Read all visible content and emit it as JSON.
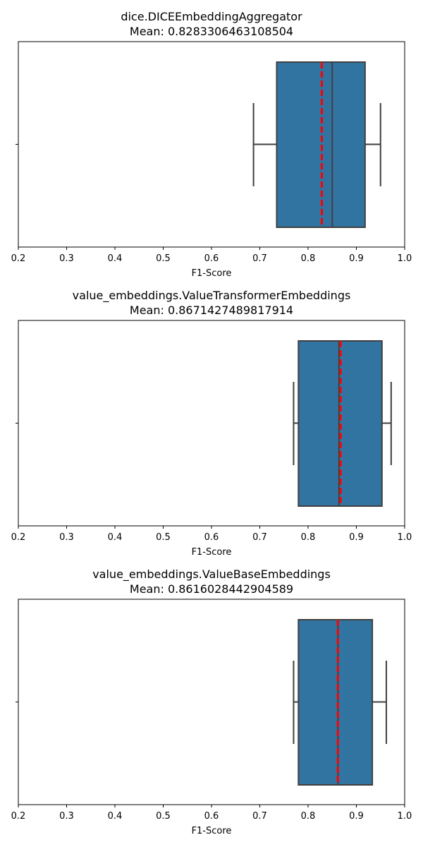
{
  "chart_data": [
    {
      "type": "box",
      "title": "dice.DICEEmbeddingAggregator",
      "subtitle": "Mean: 0.8283306463108504",
      "xlabel": "F1-Score",
      "xlim": [
        0.2,
        1.0
      ],
      "xticks": [
        "0.2",
        "0.3",
        "0.4",
        "0.5",
        "0.6",
        "0.7",
        "0.8",
        "0.9",
        "1.0"
      ],
      "box": {
        "whisker_low": 0.687,
        "q1": 0.735,
        "median": 0.85,
        "q3": 0.918,
        "whisker_high": 0.95
      },
      "mean": 0.8283306463108504,
      "colors": {
        "box": "#3274a1",
        "mean_line": "#ff0000",
        "edge": "#3f3f3f"
      }
    },
    {
      "type": "box",
      "title": "value_embeddings.ValueTransformerEmbeddings",
      "subtitle": "Mean: 0.8671427489817914",
      "xlabel": "F1-Score",
      "xlim": [
        0.2,
        1.0
      ],
      "xticks": [
        "0.2",
        "0.3",
        "0.4",
        "0.5",
        "0.6",
        "0.7",
        "0.8",
        "0.9",
        "1.0"
      ],
      "box": {
        "whisker_low": 0.77,
        "q1": 0.78,
        "median": 0.864,
        "q3": 0.953,
        "whisker_high": 0.972
      },
      "mean": 0.8671427489817914,
      "colors": {
        "box": "#3274a1",
        "mean_line": "#ff0000",
        "edge": "#3f3f3f"
      }
    },
    {
      "type": "box",
      "title": "value_embeddings.ValueBaseEmbeddings",
      "subtitle": "Mean: 0.8616028442904589",
      "xlabel": "F1-Score",
      "xlim": [
        0.2,
        1.0
      ],
      "xticks": [
        "0.2",
        "0.3",
        "0.4",
        "0.5",
        "0.6",
        "0.7",
        "0.8",
        "0.9",
        "1.0"
      ],
      "box": {
        "whisker_low": 0.77,
        "q1": 0.78,
        "median": 0.862,
        "q3": 0.933,
        "whisker_high": 0.962
      },
      "mean": 0.8616028442904589,
      "colors": {
        "box": "#3274a1",
        "mean_line": "#ff0000",
        "edge": "#3f3f3f"
      }
    }
  ]
}
